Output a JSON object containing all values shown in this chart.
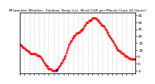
{
  "title": "Milwaukee Weather  Outdoor Temp (vs)  Wind Chill per Minute (Last 24 Hours)",
  "line_color": "#ff0000",
  "line_style": "--",
  "line_width": 0.6,
  "marker": ".",
  "marker_size": 1.2,
  "bg_color": "#ffffff",
  "grid_color": "#aaaaaa",
  "y_tick_labels": [
    "35",
    "30",
    "25",
    "20",
    "15",
    "10",
    "5",
    "0",
    "-5"
  ],
  "y_tick_vals": [
    35,
    30,
    25,
    20,
    15,
    10,
    5,
    0,
    -5
  ],
  "ylim": [
    -7,
    37
  ],
  "xlim": [
    0,
    143
  ],
  "blue_x": 46,
  "blue_y": -4.5,
  "x_data": [
    0,
    1,
    2,
    3,
    4,
    5,
    6,
    7,
    8,
    9,
    10,
    11,
    12,
    13,
    14,
    15,
    16,
    17,
    18,
    19,
    20,
    21,
    22,
    23,
    24,
    25,
    26,
    27,
    28,
    29,
    30,
    31,
    32,
    33,
    34,
    35,
    36,
    37,
    38,
    39,
    40,
    41,
    42,
    43,
    44,
    45,
    46,
    47,
    48,
    49,
    50,
    51,
    52,
    53,
    54,
    55,
    56,
    57,
    58,
    59,
    60,
    61,
    62,
    63,
    64,
    65,
    66,
    67,
    68,
    69,
    70,
    71,
    72,
    73,
    74,
    75,
    76,
    77,
    78,
    79,
    80,
    81,
    82,
    83,
    84,
    85,
    86,
    87,
    88,
    89,
    90,
    91,
    92,
    93,
    94,
    95,
    96,
    97,
    98,
    99,
    100,
    101,
    102,
    103,
    104,
    105,
    106,
    107,
    108,
    109,
    110,
    111,
    112,
    113,
    114,
    115,
    116,
    117,
    118,
    119,
    120,
    121,
    122,
    123,
    124,
    125,
    126,
    127,
    128,
    129,
    130,
    131,
    132,
    133,
    134,
    135,
    136,
    137,
    138,
    139,
    140,
    141,
    142,
    143
  ],
  "y_data": [
    14,
    14,
    13,
    13,
    12,
    12,
    11,
    11,
    10,
    10,
    9,
    9,
    8,
    8,
    7,
    7,
    7,
    7,
    7,
    7,
    7,
    6,
    6,
    6,
    6,
    5,
    5,
    4,
    3,
    2,
    1,
    0,
    -1,
    -1,
    -2,
    -3,
    -4,
    -4,
    -4,
    -4,
    -5,
    -5,
    -5,
    -5,
    -5,
    -5,
    -5,
    -4,
    -3,
    -2,
    -1,
    0,
    1,
    2,
    3,
    4,
    5,
    6,
    8,
    10,
    12,
    14,
    15,
    16,
    17,
    18,
    19,
    20,
    20,
    21,
    22,
    22,
    22,
    23,
    23,
    24,
    24,
    25,
    25,
    26,
    27,
    28,
    29,
    30,
    30,
    31,
    31,
    31,
    32,
    32,
    33,
    33,
    33,
    33,
    33,
    32,
    32,
    31,
    30,
    30,
    29,
    28,
    28,
    27,
    27,
    26,
    25,
    24,
    23,
    22,
    21,
    20,
    19,
    18,
    17,
    16,
    15,
    14,
    13,
    12,
    11,
    10,
    10,
    9,
    9,
    8,
    8,
    7,
    7,
    6,
    6,
    5,
    5,
    5,
    4,
    4,
    4,
    3,
    3,
    3,
    3,
    3,
    3,
    3
  ],
  "grid_x_positions": [
    0,
    6,
    12,
    18,
    24,
    30,
    36,
    42,
    48,
    54,
    60,
    66,
    72,
    78,
    84,
    90,
    96,
    102,
    108,
    114,
    120,
    126,
    132,
    138
  ],
  "title_fontsize": 2.8,
  "tick_fontsize": 3.2,
  "spine_lw": 0.5
}
